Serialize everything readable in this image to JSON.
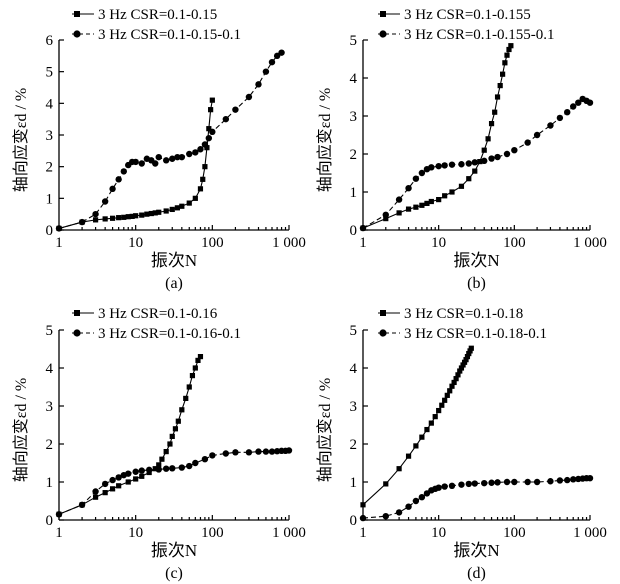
{
  "chart_data": [
    {
      "type": "line",
      "caption": "(a)",
      "xlabel": "振次N",
      "ylabel": "轴向应变εd / %",
      "xscale": "log",
      "xlim": [
        1,
        1000
      ],
      "ylim": [
        0,
        6
      ],
      "xticks": [
        1,
        10,
        100,
        1000
      ],
      "xtick_labels": [
        "1",
        "10",
        "100",
        "1 000"
      ],
      "yticks": [
        0,
        1,
        2,
        3,
        4,
        5,
        6
      ],
      "ytick_labels": [
        "0",
        "1",
        "2",
        "3",
        "4",
        "5",
        "6"
      ],
      "legend_position": "top-left",
      "series": [
        {
          "name": "3 Hz CSR=0.1-0.15",
          "marker": "square",
          "line": "solid",
          "x": [
            1,
            2,
            3,
            4,
            5,
            6,
            7,
            8,
            9,
            10,
            12,
            14,
            16,
            18,
            20,
            25,
            30,
            35,
            40,
            50,
            60,
            70,
            75,
            80,
            85,
            90,
            95,
            100
          ],
          "y": [
            0.05,
            0.25,
            0.32,
            0.35,
            0.37,
            0.39,
            0.4,
            0.42,
            0.43,
            0.45,
            0.47,
            0.5,
            0.52,
            0.54,
            0.56,
            0.6,
            0.65,
            0.7,
            0.75,
            0.85,
            1.0,
            1.3,
            1.6,
            2.0,
            2.6,
            3.2,
            3.8,
            4.1
          ]
        },
        {
          "name": "3 Hz CSR=0.1-0.15-0.1",
          "marker": "circle",
          "line": "dashed",
          "x": [
            1,
            2,
            3,
            4,
            5,
            6,
            7,
            8,
            9,
            10,
            12,
            14,
            16,
            18,
            20,
            25,
            30,
            35,
            40,
            50,
            60,
            70,
            80,
            90,
            100,
            150,
            200,
            300,
            400,
            500,
            600,
            700,
            800
          ],
          "y": [
            0.05,
            0.25,
            0.5,
            0.9,
            1.3,
            1.6,
            1.85,
            2.05,
            2.15,
            2.15,
            2.1,
            2.25,
            2.2,
            2.1,
            2.3,
            2.2,
            2.25,
            2.3,
            2.3,
            2.4,
            2.45,
            2.55,
            2.7,
            2.9,
            3.1,
            3.5,
            3.8,
            4.2,
            4.6,
            5.0,
            5.3,
            5.5,
            5.6
          ]
        }
      ]
    },
    {
      "type": "line",
      "caption": "(b)",
      "xlabel": "振次N",
      "ylabel": "轴向应变εd / %",
      "xscale": "log",
      "xlim": [
        1,
        1000
      ],
      "ylim": [
        0,
        5
      ],
      "xticks": [
        1,
        10,
        100,
        1000
      ],
      "xtick_labels": [
        "1",
        "10",
        "100",
        "1 000"
      ],
      "yticks": [
        0,
        1,
        2,
        3,
        4,
        5
      ],
      "ytick_labels": [
        "0",
        "1",
        "2",
        "3",
        "4",
        "5"
      ],
      "legend_position": "top-left",
      "series": [
        {
          "name": "3 Hz CSR=0.1-0.155",
          "marker": "square",
          "line": "solid",
          "x": [
            1,
            2,
            3,
            4,
            5,
            6,
            7,
            8,
            10,
            12,
            15,
            20,
            25,
            30,
            35,
            40,
            45,
            50,
            55,
            60,
            65,
            70,
            75,
            80,
            85,
            90
          ],
          "y": [
            0.05,
            0.3,
            0.45,
            0.55,
            0.6,
            0.65,
            0.7,
            0.75,
            0.8,
            0.9,
            1.0,
            1.15,
            1.35,
            1.55,
            1.8,
            2.1,
            2.4,
            2.8,
            3.1,
            3.5,
            3.8,
            4.1,
            4.4,
            4.6,
            4.75,
            4.85
          ]
        },
        {
          "name": "3 Hz CSR=0.1-0.155-0.1",
          "marker": "circle",
          "line": "dashed",
          "x": [
            1,
            2,
            3,
            4,
            5,
            6,
            7,
            8,
            10,
            12,
            15,
            20,
            25,
            30,
            40,
            50,
            60,
            80,
            100,
            150,
            200,
            300,
            400,
            500,
            600,
            700,
            800,
            900,
            1000
          ],
          "y": [
            0.05,
            0.4,
            0.8,
            1.1,
            1.35,
            1.5,
            1.6,
            1.65,
            1.68,
            1.7,
            1.72,
            1.73,
            1.75,
            1.78,
            1.82,
            1.88,
            1.92,
            2.0,
            2.1,
            2.3,
            2.5,
            2.75,
            2.95,
            3.1,
            3.25,
            3.35,
            3.45,
            3.4,
            3.35
          ]
        }
      ]
    },
    {
      "type": "line",
      "caption": "(c)",
      "xlabel": "振次N",
      "ylabel": "轴向应变εd / %",
      "xscale": "log",
      "xlim": [
        1,
        1000
      ],
      "ylim": [
        0,
        5
      ],
      "xticks": [
        1,
        10,
        100,
        1000
      ],
      "xtick_labels": [
        "1",
        "10",
        "100",
        "1 000"
      ],
      "yticks": [
        0,
        1,
        2,
        3,
        4,
        5
      ],
      "ytick_labels": [
        "0",
        "1",
        "2",
        "3",
        "4",
        "5"
      ],
      "legend_position": "top-left",
      "series": [
        {
          "name": "3 Hz CSR=0.1-0.16",
          "marker": "square",
          "line": "solid",
          "x": [
            1,
            2,
            3,
            4,
            5,
            6,
            8,
            10,
            12,
            15,
            18,
            20,
            22,
            25,
            28,
            30,
            33,
            36,
            40,
            45,
            50,
            55,
            60,
            65,
            70
          ],
          "y": [
            0.15,
            0.4,
            0.6,
            0.72,
            0.82,
            0.9,
            1.0,
            1.08,
            1.15,
            1.25,
            1.35,
            1.45,
            1.6,
            1.8,
            2.0,
            2.2,
            2.4,
            2.6,
            2.9,
            3.2,
            3.5,
            3.8,
            4.0,
            4.2,
            4.3
          ]
        },
        {
          "name": "3 Hz CSR=0.1-0.16-0.1",
          "marker": "circle",
          "line": "dashed",
          "x": [
            1,
            2,
            3,
            4,
            5,
            6,
            7,
            8,
            10,
            12,
            15,
            20,
            25,
            30,
            40,
            50,
            60,
            80,
            100,
            150,
            200,
            300,
            400,
            500,
            600,
            700,
            800,
            900,
            1000
          ],
          "y": [
            0.15,
            0.4,
            0.75,
            0.95,
            1.05,
            1.12,
            1.18,
            1.22,
            1.27,
            1.3,
            1.32,
            1.33,
            1.35,
            1.36,
            1.38,
            1.42,
            1.5,
            1.6,
            1.7,
            1.75,
            1.78,
            1.78,
            1.8,
            1.8,
            1.8,
            1.81,
            1.82,
            1.82,
            1.83
          ]
        }
      ]
    },
    {
      "type": "line",
      "caption": "(d)",
      "xlabel": "振次N",
      "ylabel": "轴向应变εd / %",
      "xscale": "log",
      "xlim": [
        1,
        1000
      ],
      "ylim": [
        0,
        5
      ],
      "xticks": [
        1,
        10,
        100,
        1000
      ],
      "xtick_labels": [
        "1",
        "10",
        "100",
        "1 000"
      ],
      "yticks": [
        0,
        1,
        2,
        3,
        4,
        5
      ],
      "ytick_labels": [
        "0",
        "1",
        "2",
        "3",
        "4",
        "5"
      ],
      "legend_position": "top-left",
      "series": [
        {
          "name": "3 Hz CSR=0.1-0.18",
          "marker": "square",
          "line": "solid",
          "x": [
            1,
            2,
            3,
            4,
            5,
            6,
            7,
            8,
            9,
            10,
            11,
            12,
            13,
            14,
            15,
            16,
            17,
            18,
            19,
            20,
            21,
            22,
            23,
            24,
            25,
            26,
            27
          ],
          "y": [
            0.4,
            0.95,
            1.35,
            1.68,
            1.95,
            2.18,
            2.38,
            2.55,
            2.72,
            2.88,
            3.02,
            3.15,
            3.28,
            3.4,
            3.52,
            3.62,
            3.72,
            3.82,
            3.92,
            4.0,
            4.08,
            4.15,
            4.22,
            4.3,
            4.38,
            4.45,
            4.52
          ]
        },
        {
          "name": "3 Hz CSR=0.1-0.18-0.1",
          "marker": "circle",
          "line": "dashed",
          "x": [
            1,
            2,
            3,
            4,
            5,
            6,
            7,
            8,
            9,
            10,
            12,
            15,
            20,
            25,
            30,
            40,
            50,
            60,
            80,
            100,
            150,
            200,
            300,
            400,
            500,
            600,
            700,
            800,
            900,
            1000
          ],
          "y": [
            0.05,
            0.1,
            0.2,
            0.35,
            0.5,
            0.6,
            0.7,
            0.78,
            0.82,
            0.85,
            0.88,
            0.9,
            0.93,
            0.95,
            0.96,
            0.97,
            0.98,
            0.99,
            1.0,
            1.0,
            1.0,
            1.0,
            1.02,
            1.04,
            1.05,
            1.07,
            1.08,
            1.09,
            1.1,
            1.1
          ]
        }
      ]
    }
  ]
}
